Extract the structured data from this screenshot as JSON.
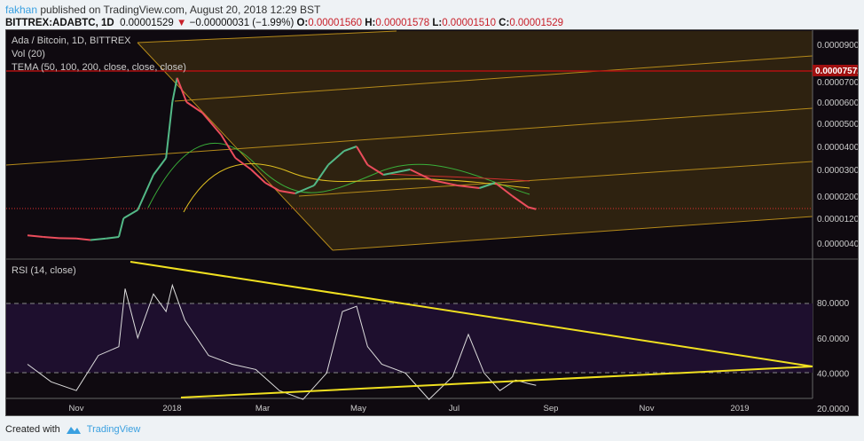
{
  "header": {
    "author": "fakhan",
    "published": "published on TradingView.com, August 20, 2018 12:29 BST",
    "symbol": "BITTREX:ADABTC, 1D",
    "last": "0.00001529",
    "change": "−0.00000031 (−1.99%)",
    "o_label": "O:",
    "o": "0.00001560",
    "h_label": "H:",
    "h": "0.00001578",
    "l_label": "L:",
    "l": "0.00001510",
    "c_label": "C:",
    "c": "0.00001529"
  },
  "legend": {
    "title": "Ada / Bitcoin, 1D, BITTREX",
    "vol": "Vol (20)",
    "tema": "TEMA (50, 100, 200, close, close, close)",
    "rsi": "RSI (14, close)"
  },
  "footer": {
    "created": "Created with",
    "brand": "TradingView"
  },
  "colors": {
    "up": "#53b987",
    "down": "#eb4d5c",
    "channel": "#b58a1a",
    "rsi": "#dddddd",
    "trend": "#f0e020",
    "price_tag": "#a01010"
  },
  "chart_data": {
    "type": "line",
    "title": "Ada / Bitcoin, 1D, BITTREX",
    "price_ticks": [
      "0.00009000",
      "0.00007000",
      "0.00006000",
      "0.00005000",
      "0.00004000",
      "0.00003000",
      "0.00002000",
      "0.00001200",
      "0.00000400"
    ],
    "price_tag": "0.00007572",
    "rsi_ticks": [
      "80.0000",
      "60.0000",
      "40.0000",
      "20.0000"
    ],
    "time_ticks": [
      "Nov",
      "2018",
      "Mar",
      "May",
      "Jul",
      "Sep",
      "Nov",
      "2019"
    ],
    "close_series_days_since_2017_10_01": [
      0,
      10,
      20,
      31,
      40,
      50,
      58,
      61,
      70,
      80,
      88,
      92,
      95,
      101,
      111,
      123,
      132,
      142,
      151,
      160,
      170,
      182,
      191,
      201,
      209,
      216,
      226,
      243,
      257,
      273,
      287,
      297,
      308,
      318,
      323
    ],
    "close_series_price_sats": [
      650,
      600,
      560,
      550,
      500,
      550,
      600,
      1200,
      1500,
      2800,
      3500,
      6000,
      7200,
      6000,
      5500,
      4500,
      3500,
      3000,
      2500,
      2200,
      2100,
      2400,
      3200,
      3800,
      4000,
      3200,
      2800,
      3000,
      2600,
      2400,
      2300,
      2500,
      2000,
      1600,
      1529
    ],
    "rsi_days": [
      0,
      15,
      31,
      45,
      58,
      62,
      70,
      80,
      88,
      92,
      100,
      115,
      130,
      145,
      160,
      175,
      190,
      200,
      209,
      216,
      225,
      240,
      255,
      270,
      280,
      290,
      300,
      310,
      318,
      323
    ],
    "rsi_values": [
      45,
      35,
      30,
      50,
      55,
      88,
      60,
      85,
      75,
      90,
      70,
      50,
      45,
      42,
      30,
      25,
      40,
      75,
      78,
      55,
      45,
      40,
      25,
      38,
      62,
      40,
      30,
      36,
      34,
      33
    ]
  }
}
